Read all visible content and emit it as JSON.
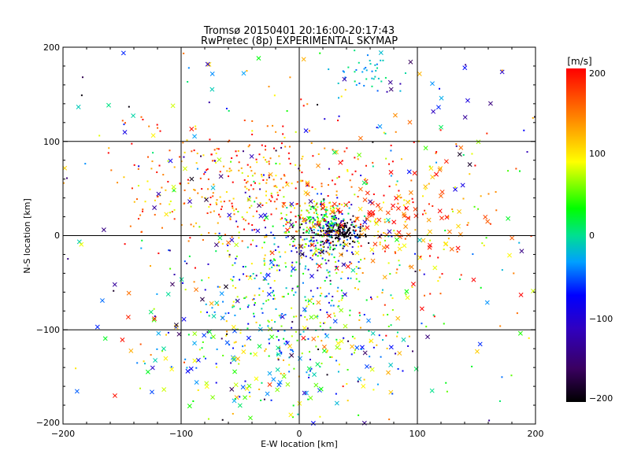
{
  "chart_data": {
    "type": "scatter",
    "title": "Tromsø 20150401 20:16:00-20:17:43",
    "subtitle": "RwPretec (8p) EXPERIMENTAL SKYMAP",
    "xlabel": "E-W location [km]",
    "ylabel": "N-S location [km]",
    "xlim": [
      -200,
      200
    ],
    "ylim": [
      -200,
      200
    ],
    "xticks": [
      "−200",
      "−100",
      "0",
      "100",
      "200"
    ],
    "yticks": [
      "200",
      "100",
      "0",
      "−100",
      "−200"
    ],
    "grid": true,
    "colorbar": {
      "label": "[m/s]",
      "range": [
        -200,
        200
      ],
      "ticks": [
        "200",
        "100",
        "0",
        "−100",
        "−200"
      ],
      "placement": "right",
      "colormap": "rainbow-black-to-red"
    },
    "marker_types": [
      "dot",
      "cross"
    ],
    "clusters": [
      {
        "x": 35,
        "y": 5,
        "sx": 10,
        "sy": 6,
        "n": 160,
        "color_value_mean": -190,
        "color_value_spread": 20,
        "markers": "dot"
      },
      {
        "x": 20,
        "y": 20,
        "sx": 8,
        "sy": 10,
        "n": 90,
        "color_value_mean": 40,
        "color_value_spread": 60,
        "markers": "dot"
      },
      {
        "x": 20,
        "y": 0,
        "sx": 14,
        "sy": 14,
        "n": 160,
        "color_value_mean": -60,
        "color_value_spread": 140,
        "markers": "dot"
      },
      {
        "x": 55,
        "y": 175,
        "sx": 12,
        "sy": 10,
        "n": 40,
        "color_value_mean": -20,
        "color_value_spread": 30,
        "markers": "dot"
      },
      {
        "x": -40,
        "y": 50,
        "sx": 55,
        "sy": 35,
        "n": 350,
        "color_value_mean": 150,
        "color_value_spread": 80,
        "markers": "dot"
      },
      {
        "x": 80,
        "y": 10,
        "sx": 45,
        "sy": 35,
        "n": 220,
        "color_value_mean": 150,
        "color_value_spread": 80,
        "markers": "mixed"
      },
      {
        "x": 0,
        "y": -40,
        "sx": 40,
        "sy": 40,
        "n": 300,
        "color_value_mean": 0,
        "color_value_spread": 120,
        "markers": "dot"
      },
      {
        "x": -20,
        "y": -120,
        "sx": 60,
        "sy": 35,
        "n": 260,
        "color_value_mean": 20,
        "color_value_spread": 110,
        "markers": "mixed"
      },
      {
        "x": 0,
        "y": 0,
        "sx": 130,
        "sy": 130,
        "n": 500,
        "color_value_mean": 0,
        "color_value_spread": 200,
        "markers": "mixed"
      }
    ]
  }
}
